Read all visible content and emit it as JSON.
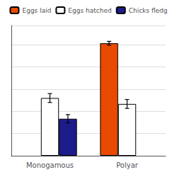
{
  "chart_data": {
    "type": "bar",
    "categories": [
      "Monogamous",
      "Polyar"
    ],
    "series": [
      {
        "name": "Eggs laid",
        "color": "#E84A00",
        "values": [
          null,
          7.6
        ],
        "errors": [
          null,
          0.13
        ]
      },
      {
        "name": "Eggs hatched",
        "color": "#FFFFFF",
        "values": [
          3.9,
          3.5
        ],
        "errors": [
          0.3,
          0.3
        ]
      },
      {
        "name": "Chicks fledg",
        "color": "#1C1C8C",
        "values": [
          2.5,
          null
        ],
        "errors": [
          0.28,
          null
        ]
      }
    ],
    "ylim": [
      0,
      8.8
    ],
    "yticks": [
      0,
      1.5,
      3,
      4.5,
      6,
      7.5
    ],
    "grid": true,
    "legend": "top",
    "tick_labels": "x"
  }
}
